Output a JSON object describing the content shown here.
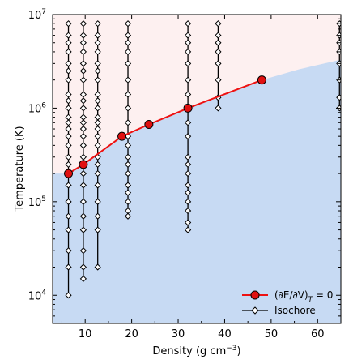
{
  "chart_data": {
    "type": "scatter",
    "xlabel": "Density (g cm",
    "xlabel_sup": "−3",
    "xlabel_end": ")",
    "ylabel": "Temperature (K)",
    "xlim": [
      3,
      65
    ],
    "ylim": [
      5000,
      10000000
    ],
    "y_scale": "log",
    "grid": false,
    "legend_position": "bottom-right",
    "x_ticks": [
      {
        "value": 10,
        "label": "10"
      },
      {
        "value": 20,
        "label": "20"
      },
      {
        "value": 30,
        "label": "30"
      },
      {
        "value": 40,
        "label": "40"
      },
      {
        "value": 50,
        "label": "50"
      },
      {
        "value": 60,
        "label": "60"
      }
    ],
    "y_ticks": [
      {
        "value": 10000,
        "base": "10",
        "exp": "4"
      },
      {
        "value": 100000,
        "base": "10",
        "exp": "5"
      },
      {
        "value": 1000000,
        "base": "10",
        "exp": "6"
      },
      {
        "value": 10000000,
        "base": "10",
        "exp": "7"
      }
    ],
    "region_colors": {
      "upper": "#fdf0f0",
      "lower": "#c7daf3"
    },
    "region_boundary": [
      {
        "x": 3,
        "y": 200000
      },
      {
        "x": 6.4,
        "y": 200000
      },
      {
        "x": 9.6,
        "y": 250000
      },
      {
        "x": 17.9,
        "y": 500000
      },
      {
        "x": 23.7,
        "y": 670000
      },
      {
        "x": 32.1,
        "y": 1000000
      },
      {
        "x": 48,
        "y": 2000000
      },
      {
        "x": 56,
        "y": 2600000
      },
      {
        "x": 65,
        "y": 3300000
      }
    ],
    "series": [
      {
        "name": "(∂E/∂V)T = 0",
        "legend_main": "(∂E/∂V)",
        "legend_sub": "T",
        "legend_tail": " = 0",
        "color": "#ee1111",
        "marker_fill": "#e01010",
        "marker": "circle",
        "x": [
          6.4,
          9.6,
          17.9,
          23.7,
          32.1,
          48.0
        ],
        "y": [
          200000,
          250000,
          500000,
          670000,
          1000000,
          2000000
        ]
      },
      {
        "name": "Isochore",
        "color": "#000000",
        "marker": "diamond",
        "isochores": [
          {
            "x": 6.4,
            "y": [
              10000,
              20000,
              30000,
              50000,
              70000,
              100000,
              150000,
              200000,
              250000,
              300000,
              400000,
              500000,
              600000,
              700000,
              800000,
              1000000,
              1200000,
              1400000,
              2000000,
              2500000,
              3000000,
              4000000,
              5000000,
              6000000,
              8000000
            ]
          },
          {
            "x": 9.6,
            "y": [
              15000,
              20000,
              30000,
              50000,
              70000,
              100000,
              150000,
              200000,
              250000,
              300000,
              400000,
              500000,
              600000,
              700000,
              800000,
              1000000,
              1200000,
              1400000,
              2000000,
              2500000,
              3000000,
              4000000,
              5000000,
              6000000,
              8000000
            ]
          },
          {
            "x": 12.7,
            "y": [
              20000,
              50000,
              70000,
              100000,
              150000,
              200000,
              250000,
              300000,
              400000,
              500000,
              600000,
              700000,
              800000,
              1000000,
              1200000,
              1400000,
              2000000,
              2500000,
              3000000,
              4000000,
              5000000,
              6000000,
              8000000
            ]
          },
          {
            "x": 19.2,
            "y": [
              70000,
              80000,
              100000,
              125000,
              150000,
              200000,
              250000,
              300000,
              400000,
              500000,
              700000,
              1000000,
              1400000,
              2000000,
              3000000,
              4000000,
              5000000,
              6000000,
              8000000
            ]
          },
          {
            "x": 32.1,
            "y": [
              50000,
              60000,
              80000,
              100000,
              125000,
              150000,
              200000,
              250000,
              300000,
              500000,
              700000,
              1000000,
              1400000,
              2000000,
              3000000,
              4000000,
              5000000,
              6000000,
              8000000
            ]
          },
          {
            "x": 38.6,
            "y": [
              1000000,
              1300000,
              2000000,
              3000000,
              4000000,
              5000000,
              6000000,
              8000000
            ]
          },
          {
            "x": 64.7,
            "y": [
              1000000,
              1300000,
              2000000,
              3000000,
              4000000,
              5000000,
              6000000,
              8000000
            ]
          }
        ]
      }
    ]
  }
}
